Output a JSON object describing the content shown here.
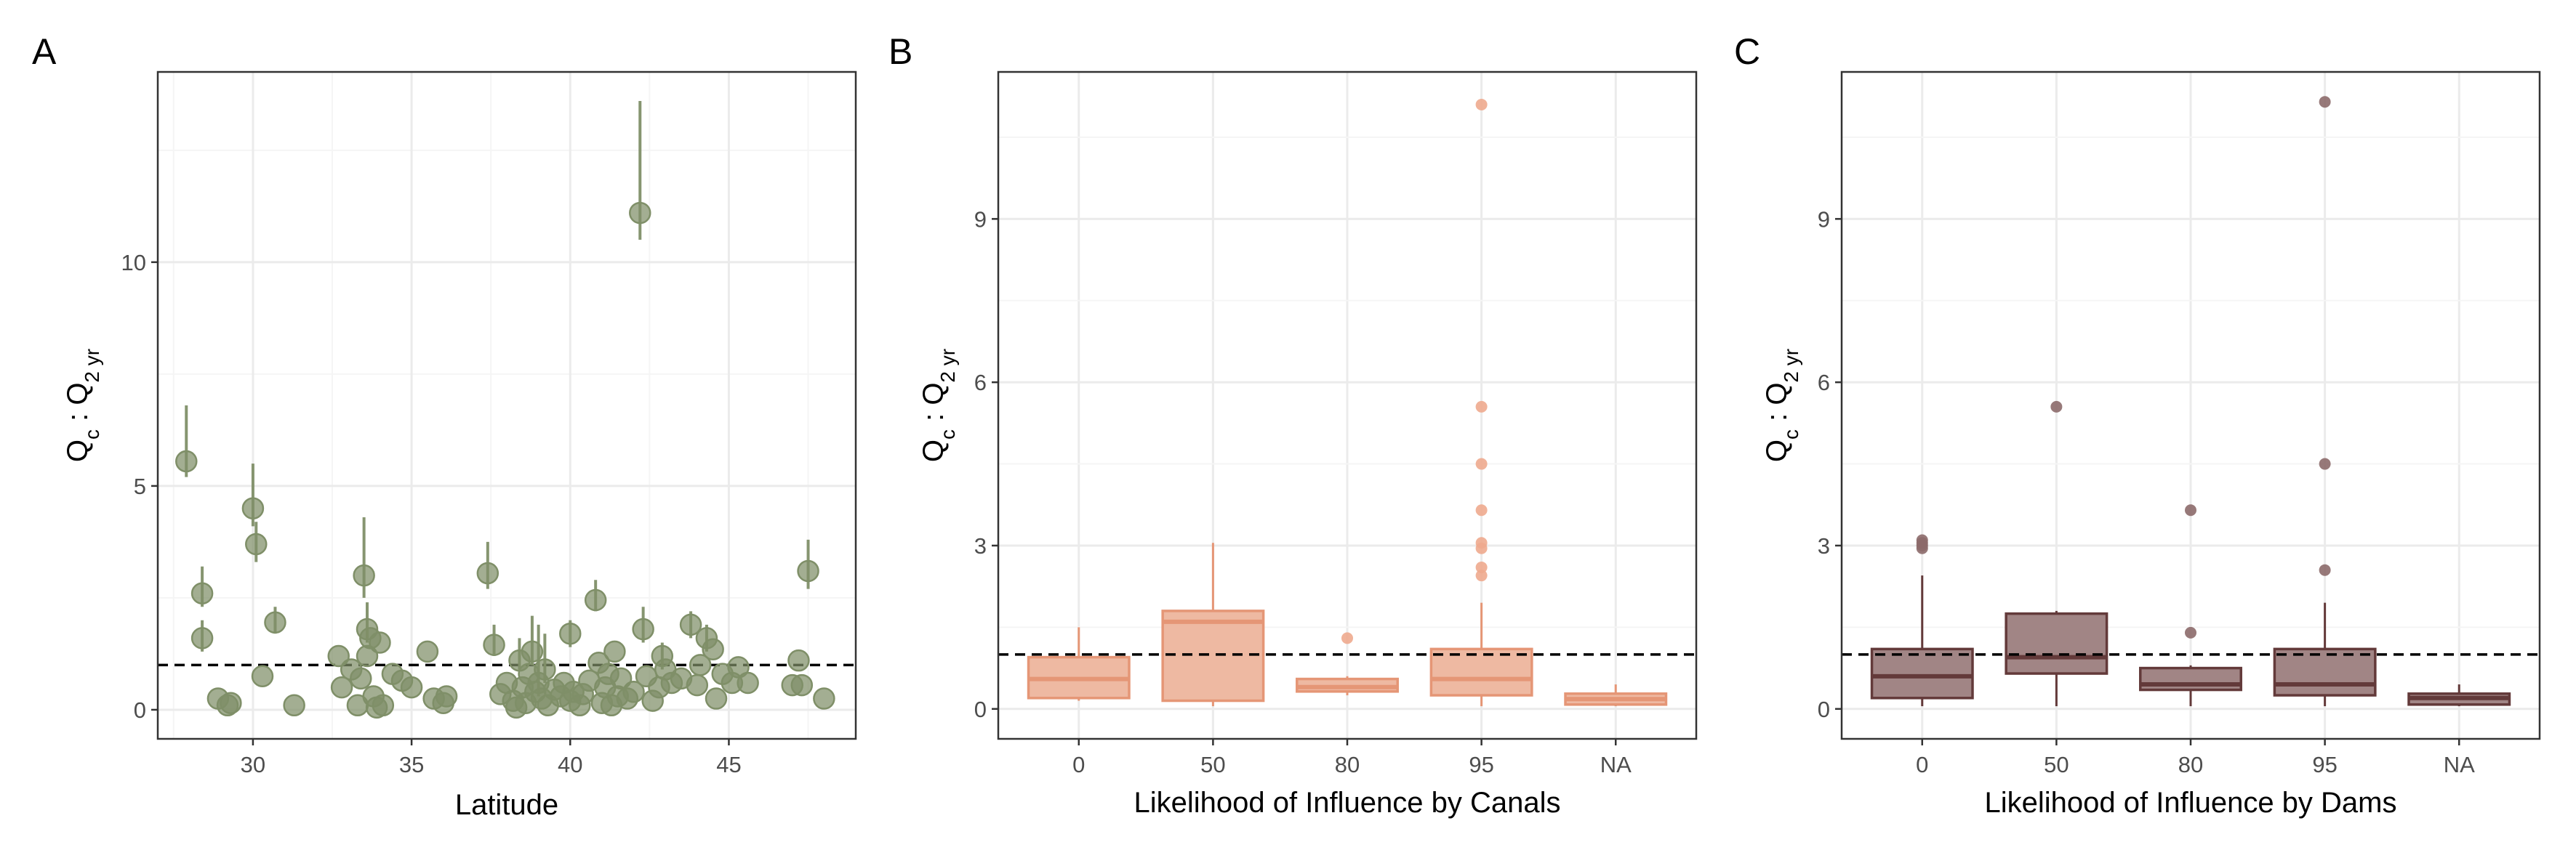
{
  "chart_data": [
    {
      "panel": "A",
      "type": "scatter",
      "xlabel": "Latitude",
      "ylabel_main": "Q",
      "ylabel_sub1": "c",
      "ylabel_mid": " : Q",
      "ylabel_sub2": "2 yr",
      "xlim": [
        27.0,
        49.0
      ],
      "ylim": [
        -0.65,
        14.25
      ],
      "xticks": [
        30,
        35,
        40,
        45
      ],
      "yticks": [
        0,
        5,
        10
      ],
      "xminor": [
        27.5,
        32.5,
        37.5,
        42.5,
        47.5
      ],
      "yminor": [
        2.5,
        7.5,
        12.5
      ],
      "reference_line": 1,
      "point_color": "#7f8f68",
      "points": [
        {
          "x": 27.9,
          "y": 5.55,
          "lo": 5.2,
          "hi": 6.8
        },
        {
          "x": 28.4,
          "y": 2.6,
          "lo": 2.3,
          "hi": 3.2
        },
        {
          "x": 28.4,
          "y": 1.6,
          "lo": 1.3,
          "hi": 2.0
        },
        {
          "x": 28.9,
          "y": 0.25
        },
        {
          "x": 29.2,
          "y": 0.1
        },
        {
          "x": 29.3,
          "y": 0.15
        },
        {
          "x": 30.0,
          "y": 4.5,
          "lo": 4.1,
          "hi": 5.5
        },
        {
          "x": 30.1,
          "y": 3.7,
          "lo": 3.3,
          "hi": 4.2
        },
        {
          "x": 30.3,
          "y": 0.75
        },
        {
          "x": 30.7,
          "y": 1.95,
          "lo": 1.7,
          "hi": 2.3
        },
        {
          "x": 31.3,
          "y": 0.1
        },
        {
          "x": 32.7,
          "y": 1.2
        },
        {
          "x": 32.8,
          "y": 0.5
        },
        {
          "x": 33.1,
          "y": 0.9
        },
        {
          "x": 33.3,
          "y": 0.1
        },
        {
          "x": 33.4,
          "y": 0.7
        },
        {
          "x": 33.5,
          "y": 3.0,
          "lo": 2.5,
          "hi": 4.3
        },
        {
          "x": 33.6,
          "y": 1.8,
          "lo": 1.5,
          "hi": 2.4
        },
        {
          "x": 33.6,
          "y": 1.2
        },
        {
          "x": 33.7,
          "y": 1.6
        },
        {
          "x": 33.8,
          "y": 0.3
        },
        {
          "x": 33.9,
          "y": 0.05
        },
        {
          "x": 34.0,
          "y": 1.5
        },
        {
          "x": 34.1,
          "y": 0.1
        },
        {
          "x": 34.4,
          "y": 0.8
        },
        {
          "x": 34.7,
          "y": 0.65
        },
        {
          "x": 35.0,
          "y": 0.5
        },
        {
          "x": 35.5,
          "y": 1.3
        },
        {
          "x": 35.7,
          "y": 0.25
        },
        {
          "x": 36.0,
          "y": 0.15
        },
        {
          "x": 36.1,
          "y": 0.3
        },
        {
          "x": 37.4,
          "y": 3.05,
          "lo": 2.7,
          "hi": 3.75
        },
        {
          "x": 37.6,
          "y": 1.45,
          "lo": 1.2,
          "hi": 1.9
        },
        {
          "x": 37.8,
          "y": 0.35
        },
        {
          "x": 38.0,
          "y": 0.6
        },
        {
          "x": 38.2,
          "y": 0.2
        },
        {
          "x": 38.3,
          "y": 0.05
        },
        {
          "x": 38.4,
          "y": 1.1,
          "lo": 0.9,
          "hi": 1.6
        },
        {
          "x": 38.5,
          "y": 0.5
        },
        {
          "x": 38.6,
          "y": 0.15
        },
        {
          "x": 38.7,
          "y": 0.8
        },
        {
          "x": 38.8,
          "y": 1.3,
          "lo": 1.0,
          "hi": 2.1
        },
        {
          "x": 38.9,
          "y": 0.4
        },
        {
          "x": 39.0,
          "y": 0.6,
          "lo": 0.3,
          "hi": 1.9
        },
        {
          "x": 39.1,
          "y": 0.25
        },
        {
          "x": 39.2,
          "y": 0.9,
          "lo": 0.6,
          "hi": 1.7
        },
        {
          "x": 39.3,
          "y": 0.1
        },
        {
          "x": 39.5,
          "y": 0.45
        },
        {
          "x": 39.7,
          "y": 0.3
        },
        {
          "x": 39.8,
          "y": 0.6
        },
        {
          "x": 40.0,
          "y": 1.7,
          "lo": 1.4,
          "hi": 2.0
        },
        {
          "x": 40.0,
          "y": 0.2
        },
        {
          "x": 40.1,
          "y": 0.4
        },
        {
          "x": 40.3,
          "y": 0.1
        },
        {
          "x": 40.4,
          "y": 0.35
        },
        {
          "x": 40.6,
          "y": 0.65
        },
        {
          "x": 40.8,
          "y": 2.45,
          "lo": 2.2,
          "hi": 2.9
        },
        {
          "x": 40.9,
          "y": 1.05
        },
        {
          "x": 41.0,
          "y": 0.15
        },
        {
          "x": 41.1,
          "y": 0.5
        },
        {
          "x": 41.2,
          "y": 0.8
        },
        {
          "x": 41.3,
          "y": 0.1
        },
        {
          "x": 41.4,
          "y": 1.3
        },
        {
          "x": 41.5,
          "y": 0.3
        },
        {
          "x": 41.6,
          "y": 0.7
        },
        {
          "x": 41.8,
          "y": 0.25
        },
        {
          "x": 42.0,
          "y": 0.4
        },
        {
          "x": 42.2,
          "y": 11.1,
          "lo": 10.5,
          "hi": 13.6
        },
        {
          "x": 42.3,
          "y": 1.8,
          "lo": 1.5,
          "hi": 2.3
        },
        {
          "x": 42.4,
          "y": 0.75
        },
        {
          "x": 42.6,
          "y": 0.2
        },
        {
          "x": 42.8,
          "y": 0.5
        },
        {
          "x": 42.9,
          "y": 1.2,
          "lo": 0.9,
          "hi": 1.5
        },
        {
          "x": 43.0,
          "y": 0.9
        },
        {
          "x": 43.2,
          "y": 0.6
        },
        {
          "x": 43.5,
          "y": 0.7
        },
        {
          "x": 43.8,
          "y": 1.9,
          "lo": 1.6,
          "hi": 2.2
        },
        {
          "x": 44.0,
          "y": 0.55
        },
        {
          "x": 44.1,
          "y": 1.0
        },
        {
          "x": 44.3,
          "y": 1.6,
          "lo": 1.3,
          "hi": 1.9
        },
        {
          "x": 44.5,
          "y": 1.35
        },
        {
          "x": 44.6,
          "y": 0.25
        },
        {
          "x": 44.8,
          "y": 0.8
        },
        {
          "x": 45.1,
          "y": 0.6
        },
        {
          "x": 45.3,
          "y": 0.95
        },
        {
          "x": 45.6,
          "y": 0.6
        },
        {
          "x": 47.0,
          "y": 0.55
        },
        {
          "x": 47.2,
          "y": 1.1
        },
        {
          "x": 47.3,
          "y": 0.55
        },
        {
          "x": 47.5,
          "y": 3.1,
          "lo": 2.7,
          "hi": 3.8
        },
        {
          "x": 48.0,
          "y": 0.25
        }
      ]
    },
    {
      "panel": "B",
      "type": "box",
      "xlabel": "Likelihood of Influence by Canals",
      "ylabel_main": "Q",
      "ylabel_sub1": "c",
      "ylabel_mid": " : Q",
      "ylabel_sub2": "2 yr",
      "ylim": [
        -0.55,
        11.7
      ],
      "yticks": [
        0,
        3,
        6,
        9
      ],
      "yminor": [
        1.5,
        4.5,
        7.5,
        10.5
      ],
      "reference_line": 1,
      "colors": {
        "fill": "#eeb9a2",
        "line": "#e59676",
        "outlier": "#eeaa8e"
      },
      "categories": [
        "0",
        "50",
        "80",
        "95",
        "NA"
      ],
      "boxes": [
        {
          "q1": 0.2,
          "median": 0.55,
          "q3": 0.95,
          "whisker_lo": 0.15,
          "whisker_hi": 1.5,
          "outliers": []
        },
        {
          "q1": 0.15,
          "median": 1.6,
          "q3": 1.8,
          "whisker_lo": 0.05,
          "whisker_hi": 3.05,
          "outliers": []
        },
        {
          "q1": 0.32,
          "median": 0.4,
          "q3": 0.55,
          "whisker_lo": 0.25,
          "whisker_hi": 0.6,
          "outliers": [
            1.3
          ]
        },
        {
          "q1": 0.25,
          "median": 0.55,
          "q3": 1.1,
          "whisker_lo": 0.05,
          "whisker_hi": 1.95,
          "outliers": [
            2.45,
            2.6,
            2.95,
            3.05,
            3.65,
            4.5,
            5.55,
            11.1
          ]
        },
        {
          "q1": 0.08,
          "median": 0.18,
          "q3": 0.28,
          "whisker_lo": 0.05,
          "whisker_hi": 0.45,
          "outliers": []
        }
      ]
    },
    {
      "panel": "C",
      "type": "box",
      "xlabel": "Likelihood of Influence by Dams",
      "ylabel_main": "Q",
      "ylabel_sub1": "c",
      "ylabel_mid": " : Q",
      "ylabel_sub2": "2 yr",
      "ylim": [
        -0.55,
        11.7
      ],
      "yticks": [
        0,
        3,
        6,
        9
      ],
      "yminor": [
        1.5,
        4.5,
        7.5,
        10.5
      ],
      "reference_line": 1,
      "colors": {
        "fill": "#a18585",
        "line": "#633a3a",
        "outlier": "#8c6a6a"
      },
      "categories": [
        "0",
        "50",
        "80",
        "95",
        "NA"
      ],
      "boxes": [
        {
          "q1": 0.2,
          "median": 0.6,
          "q3": 1.1,
          "whisker_lo": 0.05,
          "whisker_hi": 2.45,
          "outliers": [
            2.95,
            3.0,
            3.05,
            3.1
          ]
        },
        {
          "q1": 0.65,
          "median": 0.95,
          "q3": 1.75,
          "whisker_lo": 0.05,
          "whisker_hi": 1.8,
          "outliers": [
            5.55
          ]
        },
        {
          "q1": 0.35,
          "median": 0.45,
          "q3": 0.75,
          "whisker_lo": 0.05,
          "whisker_hi": 0.8,
          "outliers": [
            1.4,
            3.65
          ]
        },
        {
          "q1": 0.25,
          "median": 0.45,
          "q3": 1.1,
          "whisker_lo": 0.05,
          "whisker_hi": 1.95,
          "outliers": [
            2.55,
            4.5,
            11.15
          ]
        },
        {
          "q1": 0.08,
          "median": 0.2,
          "q3": 0.28,
          "whisker_lo": 0.05,
          "whisker_hi": 0.45,
          "outliers": []
        }
      ]
    }
  ]
}
